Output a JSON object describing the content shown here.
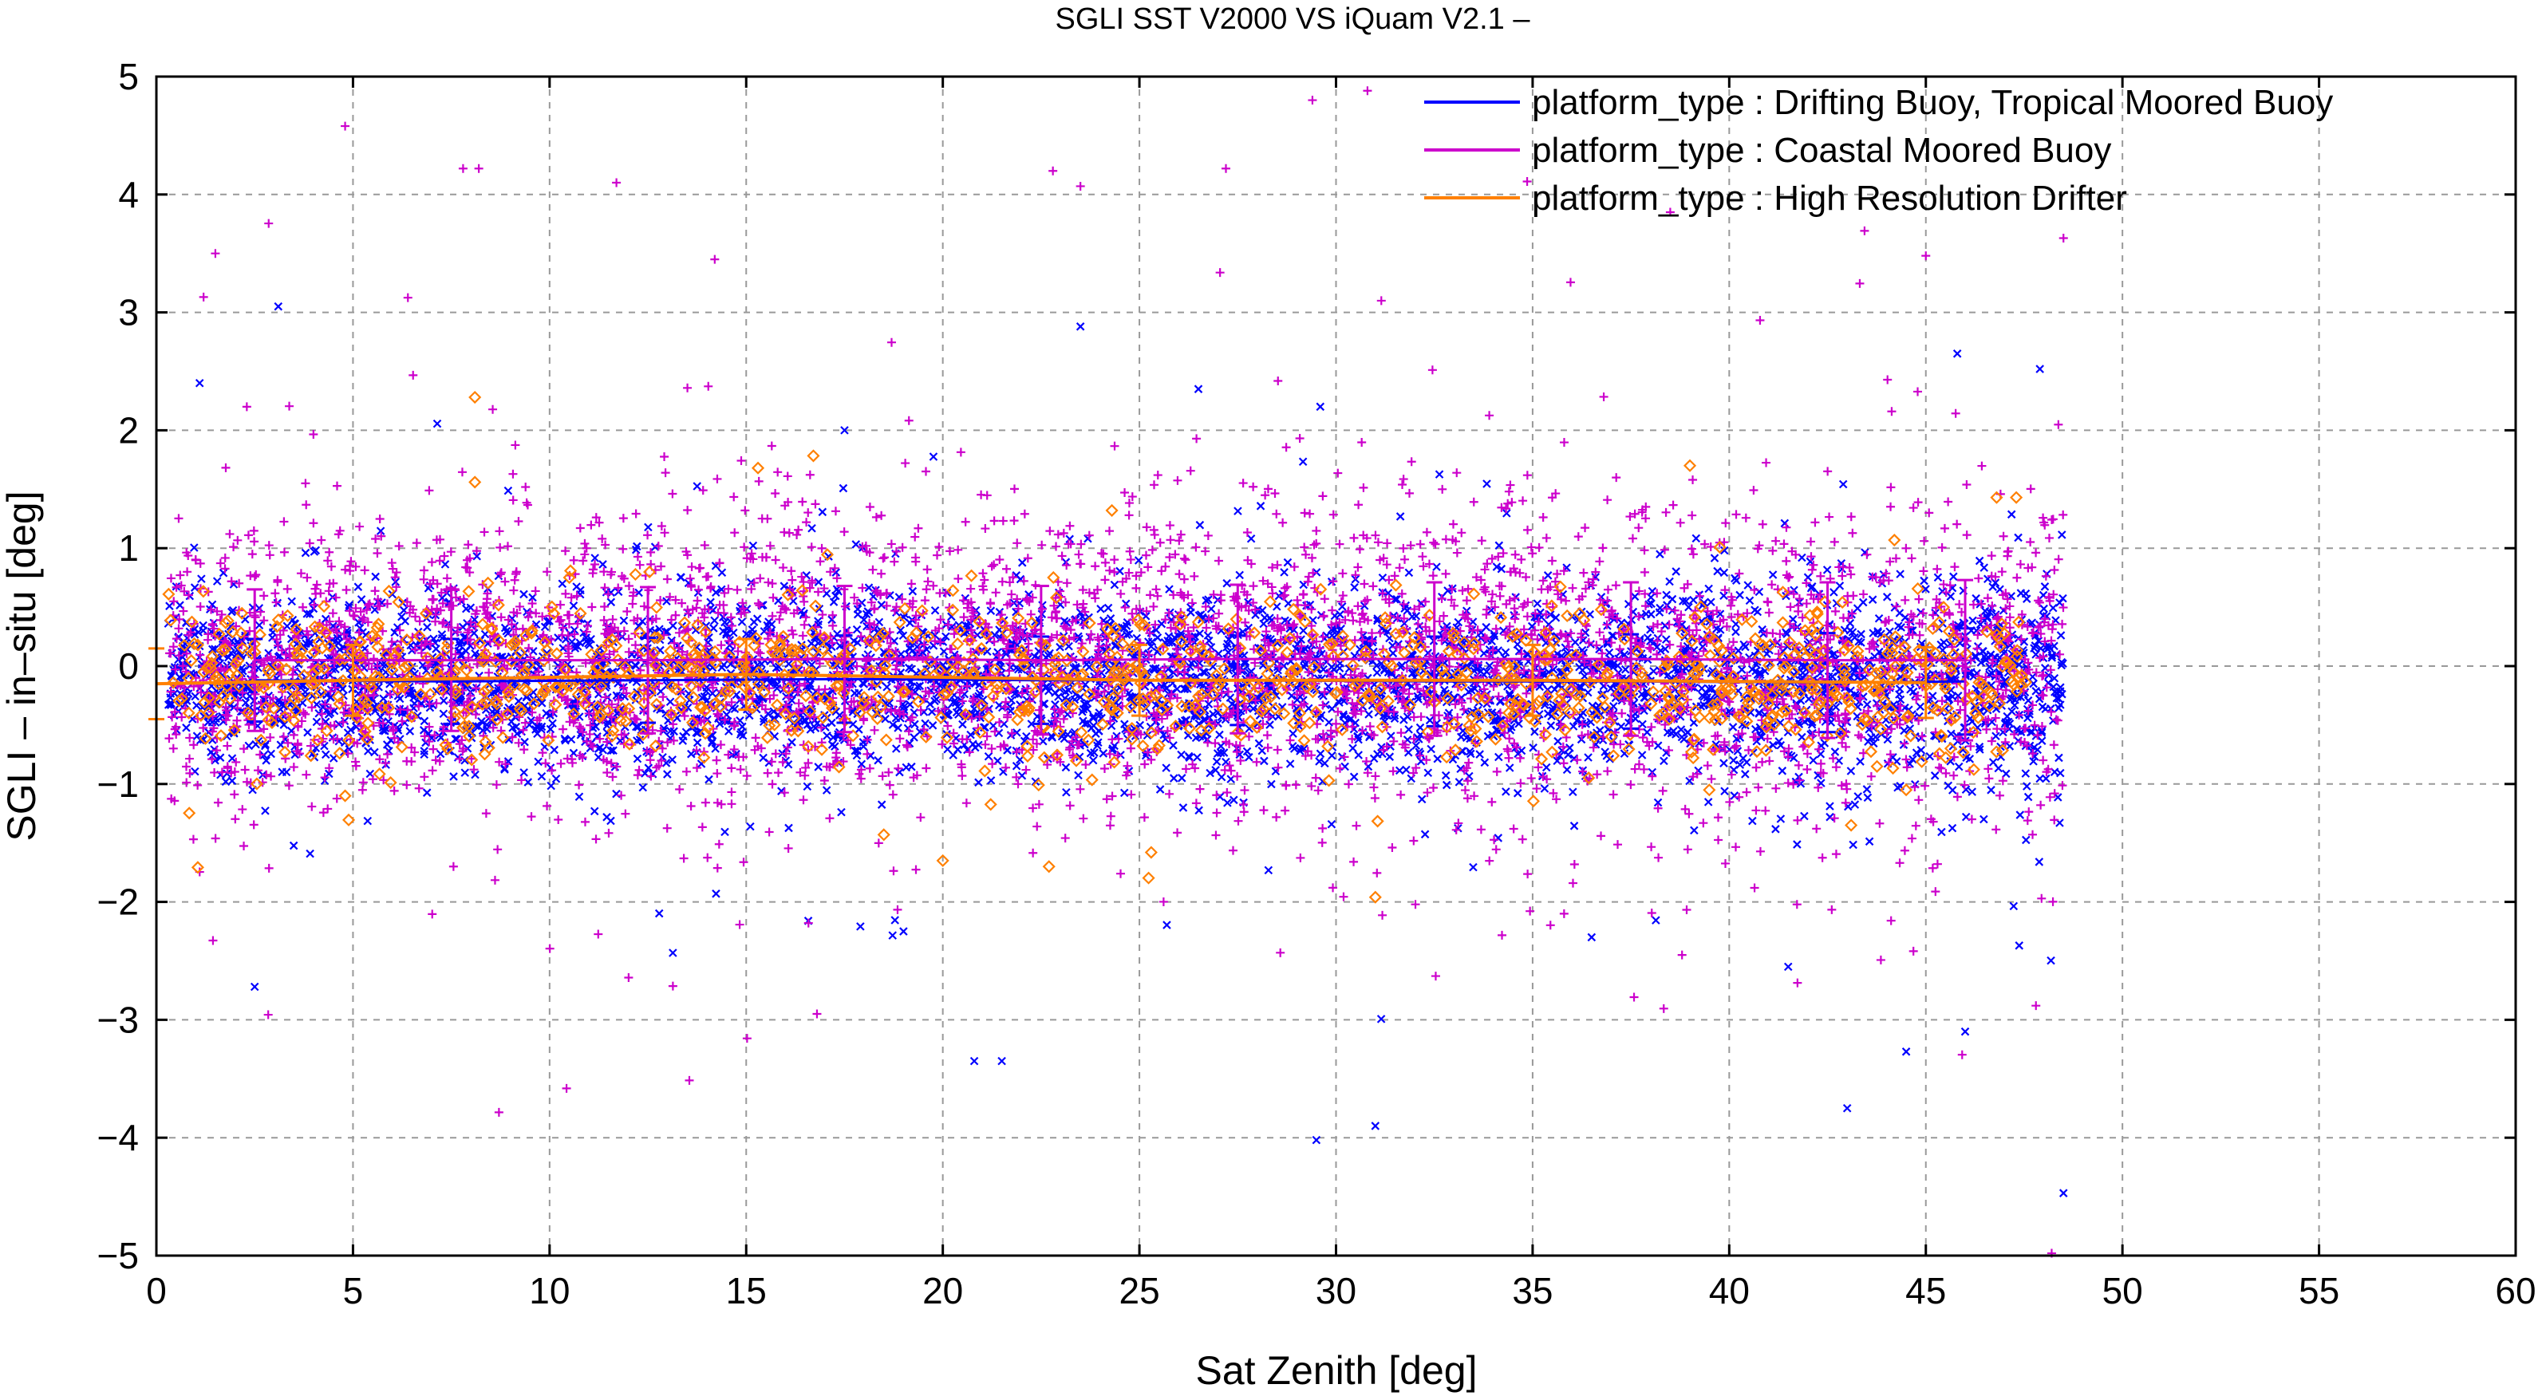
{
  "chart_data": {
    "type": "scatter",
    "title": "SGLI SST V2000 VS iQuam V2.1  –",
    "xlabel": "Sat Zenith [deg]",
    "ylabel": "SGLI – in–situ [deg]",
    "xlim": [
      0,
      60
    ],
    "ylim": [
      -5,
      5
    ],
    "x_ticks": [
      0,
      5,
      10,
      15,
      20,
      25,
      30,
      35,
      40,
      45,
      50,
      55,
      60
    ],
    "y_ticks": [
      -5,
      -4,
      -3,
      -2,
      -1,
      0,
      1,
      2,
      3,
      4,
      5
    ],
    "x_tick_labels": [
      "0",
      "5",
      "10",
      "15",
      "20",
      "25",
      "30",
      "35",
      "40",
      "45",
      "50",
      "55",
      "60"
    ],
    "y_tick_labels": [
      "−5",
      "−4",
      "−3",
      "−2",
      "−1",
      "0",
      "1",
      "2",
      "3",
      "4",
      "5"
    ],
    "grid": true,
    "legend_position": "top-right",
    "series": [
      {
        "name": "platform_type : Drifting Buoy, Tropical Moored Buoy",
        "color": "#0000ff",
        "marker": "x",
        "bin_centers": [
          2.5,
          7.5,
          12.5,
          17.5,
          22.5,
          27.5,
          32.5,
          37.5,
          42.5,
          46.0
        ],
        "bin_mean": [
          -0.12,
          -0.13,
          -0.12,
          -0.11,
          -0.12,
          -0.12,
          -0.13,
          -0.13,
          -0.14,
          -0.13
        ],
        "bin_std": [
          0.35,
          0.36,
          0.36,
          0.37,
          0.37,
          0.38,
          0.38,
          0.4,
          0.42,
          0.45
        ],
        "x_range": [
          0.3,
          48.5
        ],
        "outliers": [
          [
            2.5,
            -2.72
          ],
          [
            3.1,
            3.05
          ],
          [
            1.1,
            2.4
          ],
          [
            20.8,
            -3.35
          ],
          [
            21.5,
            -3.35
          ],
          [
            29.5,
            -4.02
          ],
          [
            31,
            -3.9
          ],
          [
            43,
            -3.75
          ],
          [
            44.5,
            -3.27
          ],
          [
            46,
            -3.1
          ],
          [
            48.5,
            -4.47
          ],
          [
            47.9,
            2.52
          ],
          [
            45.8,
            2.65
          ],
          [
            17.5,
            2.0
          ],
          [
            26.5,
            2.35
          ],
          [
            29.6,
            2.2
          ],
          [
            36.5,
            -2.3
          ],
          [
            41.5,
            -2.55
          ],
          [
            23.5,
            2.88
          ],
          [
            19,
            -2.25
          ]
        ]
      },
      {
        "name": "platform_type : Coastal Moored Buoy",
        "color": "#cc00cc",
        "marker": "+",
        "bin_centers": [
          2.5,
          7.5,
          12.5,
          17.5,
          22.5,
          27.5,
          32.5,
          37.5,
          42.5,
          46.0
        ],
        "bin_mean": [
          0.05,
          0.05,
          0.05,
          0.06,
          0.05,
          0.06,
          0.06,
          0.06,
          0.05,
          0.05
        ],
        "bin_std": [
          0.6,
          0.6,
          0.62,
          0.62,
          0.63,
          0.63,
          0.65,
          0.65,
          0.66,
          0.68
        ],
        "x_range": [
          0.3,
          48.5
        ],
        "outliers": [
          [
            4.8,
            4.58
          ],
          [
            7.8,
            4.22
          ],
          [
            8.2,
            4.22
          ],
          [
            11.7,
            4.1
          ],
          [
            22.8,
            4.2
          ],
          [
            23.5,
            4.07
          ],
          [
            27.2,
            4.22
          ],
          [
            29.4,
            4.8
          ],
          [
            30.8,
            4.88
          ],
          [
            1.5,
            3.5
          ],
          [
            14.2,
            3.45
          ],
          [
            38.5,
            3.85
          ],
          [
            48.5,
            3.63
          ],
          [
            16.8,
            -2.95
          ],
          [
            47.8,
            -2.88
          ],
          [
            48.2,
            -4.98
          ],
          [
            35.8,
            -2.1
          ],
          [
            38.8,
            -2.45
          ],
          [
            2.3,
            2.2
          ],
          [
            45,
            3.48
          ]
        ]
      },
      {
        "name": "platform_type : High Resolution Drifter",
        "color": "#ff8000",
        "marker": "diamond",
        "bin_centers": [
          0,
          5,
          15,
          25,
          35,
          45
        ],
        "bin_mean": [
          -0.15,
          -0.12,
          -0.07,
          -0.12,
          -0.12,
          -0.14
        ],
        "bin_std": [
          0.3,
          0.3,
          0.3,
          0.3,
          0.3,
          0.3
        ],
        "x_range": [
          0.3,
          47.6
        ],
        "outliers": [
          [
            8.1,
            2.28
          ],
          [
            8.1,
            1.56
          ],
          [
            15.3,
            1.68
          ],
          [
            24.3,
            1.32
          ],
          [
            46.8,
            1.43
          ],
          [
            47.3,
            1.43
          ],
          [
            39.0,
            1.7
          ],
          [
            20.0,
            -1.65
          ],
          [
            25.3,
            -1.58
          ],
          [
            31.0,
            -1.96
          ],
          [
            43.1,
            -1.35
          ],
          [
            4.8,
            -1.1
          ],
          [
            18.5,
            -1.43
          ],
          [
            22.7,
            -1.7
          ],
          [
            44.5,
            -1.05
          ]
        ]
      }
    ]
  }
}
